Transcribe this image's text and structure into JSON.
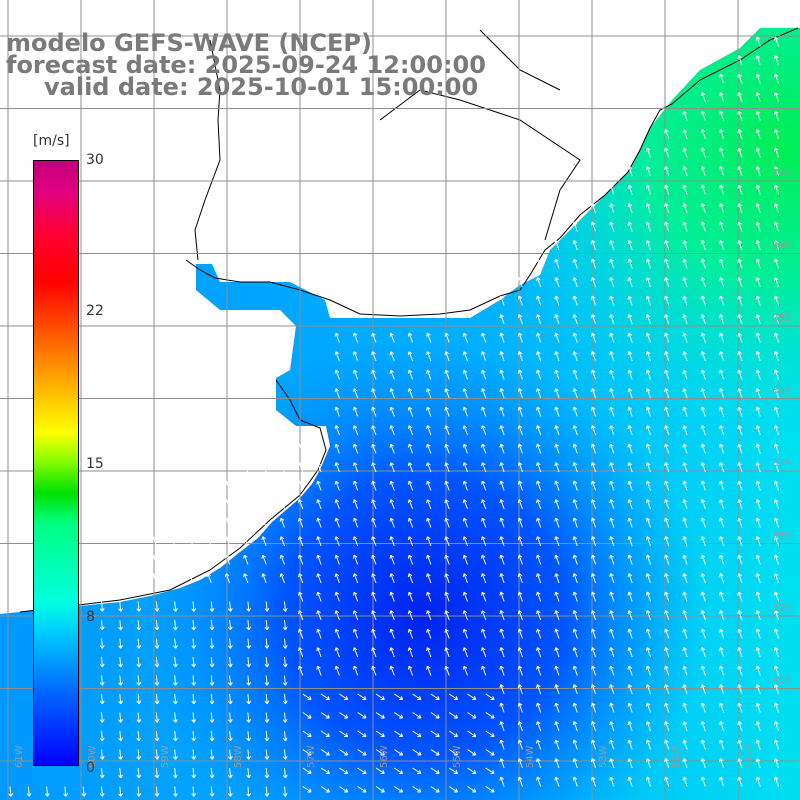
{
  "title": {
    "line1": "modelo GEFS-WAVE (NCEP)",
    "line2": "forecast date: 2025-09-24 12:00:00",
    "line3": "valid date: 2025-10-01 15:00:00"
  },
  "colorbar": {
    "unit": "[m/s]",
    "ticks": [
      "30",
      "22",
      "15",
      "8",
      "0"
    ],
    "tick_values": [
      30,
      22,
      15,
      8,
      0
    ],
    "range": [
      0,
      30
    ]
  },
  "axes": {
    "lon_labels": [
      "61W",
      "60W",
      "59W",
      "58W",
      "57W",
      "56W",
      "55W",
      "54W",
      "53W",
      "52W",
      "51W"
    ],
    "lat_labels": [
      "33S",
      "34S",
      "35S",
      "36S",
      "37S",
      "38S",
      "39S",
      "40S"
    ]
  },
  "map": {
    "variable": "wind",
    "ocean_colors": {
      "calm": "#0033ff",
      "moderate": "#00aaff",
      "strong": "#00ff66"
    },
    "land_color": "#ffffff",
    "coast_color": "#000000",
    "grid_color": "#9a9a9a"
  }
}
